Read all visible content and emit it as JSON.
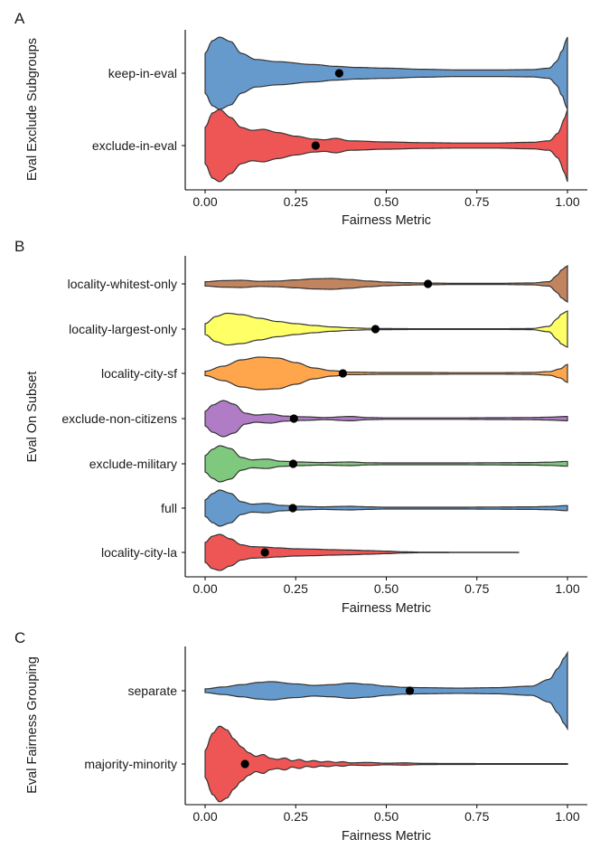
{
  "chart_data": [
    {
      "type": "violin",
      "panel": "A",
      "xlabel": "Fairness Metric",
      "ylabel": "Eval Exclude Subgroups",
      "xlim": [
        0,
        1
      ],
      "x_ticks": [
        "0.00",
        "0.25",
        "0.50",
        "0.75",
        "1.00"
      ],
      "categories": [
        "keep-in-eval",
        "exclude-in-eval"
      ],
      "series": [
        {
          "name": "keep-in-eval",
          "color": "#6699cc",
          "mean": 0.37,
          "min": 0.0,
          "max": 1.0,
          "density": [
            [
              0.0,
              0.55
            ],
            [
              0.02,
              0.9
            ],
            [
              0.04,
              1.0
            ],
            [
              0.07,
              0.88
            ],
            [
              0.1,
              0.55
            ],
            [
              0.14,
              0.38
            ],
            [
              0.2,
              0.32
            ],
            [
              0.3,
              0.24
            ],
            [
              0.36,
              0.19
            ],
            [
              0.42,
              0.16
            ],
            [
              0.5,
              0.14
            ],
            [
              0.6,
              0.11
            ],
            [
              0.7,
              0.09
            ],
            [
              0.8,
              0.09
            ],
            [
              0.9,
              0.1
            ],
            [
              0.95,
              0.14
            ],
            [
              0.97,
              0.32
            ],
            [
              0.985,
              0.62
            ],
            [
              1.0,
              1.0
            ]
          ]
        },
        {
          "name": "exclude-in-eval",
          "color": "#ee5555",
          "mean": 0.305,
          "min": 0.0,
          "max": 1.0,
          "density": [
            [
              0.0,
              0.5
            ],
            [
              0.02,
              0.9
            ],
            [
              0.04,
              1.0
            ],
            [
              0.07,
              0.78
            ],
            [
              0.1,
              0.5
            ],
            [
              0.13,
              0.42
            ],
            [
              0.16,
              0.45
            ],
            [
              0.2,
              0.36
            ],
            [
              0.25,
              0.26
            ],
            [
              0.3,
              0.18
            ],
            [
              0.33,
              0.16
            ],
            [
              0.36,
              0.2
            ],
            [
              0.4,
              0.13
            ],
            [
              0.5,
              0.1
            ],
            [
              0.6,
              0.08
            ],
            [
              0.7,
              0.07
            ],
            [
              0.8,
              0.07
            ],
            [
              0.9,
              0.09
            ],
            [
              0.95,
              0.13
            ],
            [
              0.975,
              0.35
            ],
            [
              0.99,
              0.7
            ],
            [
              1.0,
              1.0
            ]
          ]
        }
      ]
    },
    {
      "type": "violin",
      "panel": "B",
      "xlabel": "Fairness Metric",
      "ylabel": "Eval On Subset",
      "xlim": [
        0,
        1
      ],
      "x_ticks": [
        "0.00",
        "0.25",
        "0.50",
        "0.75",
        "1.00"
      ],
      "categories": [
        "locality-whitest-only",
        "locality-largest-only",
        "locality-city-sf",
        "exclude-non-citizens",
        "exclude-military",
        "full",
        "locality-city-la"
      ],
      "series": [
        {
          "name": "locality-whitest-only",
          "color": "#c0845f",
          "mean": 0.615,
          "min": 0.0,
          "max": 1.0,
          "density": [
            [
              0.0,
              0.12
            ],
            [
              0.05,
              0.18
            ],
            [
              0.1,
              0.2
            ],
            [
              0.15,
              0.14
            ],
            [
              0.2,
              0.16
            ],
            [
              0.25,
              0.22
            ],
            [
              0.3,
              0.28
            ],
            [
              0.35,
              0.3
            ],
            [
              0.4,
              0.24
            ],
            [
              0.45,
              0.16
            ],
            [
              0.5,
              0.1
            ],
            [
              0.55,
              0.07
            ],
            [
              0.6,
              0.05
            ],
            [
              0.7,
              0.03
            ],
            [
              0.8,
              0.03
            ],
            [
              0.9,
              0.05
            ],
            [
              0.95,
              0.12
            ],
            [
              0.97,
              0.45
            ],
            [
              0.985,
              0.8
            ],
            [
              1.0,
              1.0
            ]
          ]
        },
        {
          "name": "locality-largest-only",
          "color": "#ffff66",
          "mean": 0.47,
          "min": 0.0,
          "max": 1.0,
          "density": [
            [
              0.0,
              0.3
            ],
            [
              0.03,
              0.7
            ],
            [
              0.06,
              0.88
            ],
            [
              0.1,
              0.8
            ],
            [
              0.15,
              0.6
            ],
            [
              0.2,
              0.42
            ],
            [
              0.25,
              0.3
            ],
            [
              0.3,
              0.2
            ],
            [
              0.35,
              0.12
            ],
            [
              0.4,
              0.07
            ],
            [
              0.45,
              0.04
            ],
            [
              0.5,
              0.03
            ],
            [
              0.6,
              0.02
            ],
            [
              0.7,
              0.02
            ],
            [
              0.8,
              0.02
            ],
            [
              0.9,
              0.03
            ],
            [
              0.95,
              0.15
            ],
            [
              0.97,
              0.55
            ],
            [
              0.985,
              0.85
            ],
            [
              1.0,
              1.0
            ]
          ]
        },
        {
          "name": "locality-city-sf",
          "color": "#ffa64d",
          "mean": 0.38,
          "min": 0.0,
          "max": 1.0,
          "density": [
            [
              0.0,
              0.12
            ],
            [
              0.05,
              0.4
            ],
            [
              0.1,
              0.75
            ],
            [
              0.15,
              0.9
            ],
            [
              0.2,
              0.85
            ],
            [
              0.25,
              0.6
            ],
            [
              0.3,
              0.3
            ],
            [
              0.35,
              0.15
            ],
            [
              0.4,
              0.07
            ],
            [
              0.5,
              0.05
            ],
            [
              0.6,
              0.05
            ],
            [
              0.7,
              0.04
            ],
            [
              0.8,
              0.04
            ],
            [
              0.9,
              0.05
            ],
            [
              0.95,
              0.1
            ],
            [
              0.98,
              0.25
            ],
            [
              1.0,
              0.5
            ]
          ]
        },
        {
          "name": "exclude-non-citizens",
          "color": "#b07cc6",
          "mean": 0.245,
          "min": 0.0,
          "max": 1.0,
          "density": [
            [
              0.0,
              0.4
            ],
            [
              0.02,
              0.75
            ],
            [
              0.05,
              1.0
            ],
            [
              0.08,
              0.8
            ],
            [
              0.11,
              0.3
            ],
            [
              0.14,
              0.2
            ],
            [
              0.18,
              0.25
            ],
            [
              0.22,
              0.14
            ],
            [
              0.27,
              0.1
            ],
            [
              0.33,
              0.06
            ],
            [
              0.4,
              0.12
            ],
            [
              0.45,
              0.06
            ],
            [
              0.5,
              0.04
            ],
            [
              0.6,
              0.04
            ],
            [
              0.7,
              0.04
            ],
            [
              0.8,
              0.05
            ],
            [
              0.9,
              0.06
            ],
            [
              0.95,
              0.08
            ],
            [
              1.0,
              0.12
            ]
          ]
        },
        {
          "name": "exclude-military",
          "color": "#7fc97f",
          "mean": 0.243,
          "min": 0.0,
          "max": 1.0,
          "density": [
            [
              0.0,
              0.45
            ],
            [
              0.02,
              0.8
            ],
            [
              0.04,
              1.0
            ],
            [
              0.07,
              0.85
            ],
            [
              0.1,
              0.35
            ],
            [
              0.13,
              0.22
            ],
            [
              0.17,
              0.26
            ],
            [
              0.21,
              0.14
            ],
            [
              0.26,
              0.1
            ],
            [
              0.32,
              0.07
            ],
            [
              0.4,
              0.1
            ],
            [
              0.45,
              0.06
            ],
            [
              0.5,
              0.05
            ],
            [
              0.6,
              0.05
            ],
            [
              0.7,
              0.05
            ],
            [
              0.8,
              0.06
            ],
            [
              0.9,
              0.07
            ],
            [
              0.95,
              0.09
            ],
            [
              1.0,
              0.13
            ]
          ]
        },
        {
          "name": "full",
          "color": "#6699cc",
          "mean": 0.242,
          "min": 0.0,
          "max": 1.0,
          "density": [
            [
              0.0,
              0.45
            ],
            [
              0.02,
              0.8
            ],
            [
              0.04,
              1.0
            ],
            [
              0.07,
              0.82
            ],
            [
              0.1,
              0.35
            ],
            [
              0.13,
              0.22
            ],
            [
              0.17,
              0.26
            ],
            [
              0.21,
              0.15
            ],
            [
              0.26,
              0.1
            ],
            [
              0.32,
              0.07
            ],
            [
              0.4,
              0.1
            ],
            [
              0.45,
              0.07
            ],
            [
              0.5,
              0.05
            ],
            [
              0.6,
              0.05
            ],
            [
              0.7,
              0.05
            ],
            [
              0.8,
              0.06
            ],
            [
              0.9,
              0.07
            ],
            [
              0.95,
              0.09
            ],
            [
              1.0,
              0.14
            ]
          ]
        },
        {
          "name": "locality-city-la",
          "color": "#ee5555",
          "mean": 0.165,
          "min": 0.0,
          "max": 0.865,
          "density": [
            [
              0.0,
              0.55
            ],
            [
              0.02,
              0.9
            ],
            [
              0.04,
              1.0
            ],
            [
              0.07,
              0.75
            ],
            [
              0.1,
              0.42
            ],
            [
              0.13,
              0.32
            ],
            [
              0.16,
              0.3
            ],
            [
              0.2,
              0.25
            ],
            [
              0.25,
              0.2
            ],
            [
              0.3,
              0.18
            ],
            [
              0.35,
              0.15
            ],
            [
              0.4,
              0.13
            ],
            [
              0.45,
              0.1
            ],
            [
              0.5,
              0.07
            ],
            [
              0.55,
              0.03
            ],
            [
              0.6,
              0.015
            ],
            [
              0.7,
              0.01
            ],
            [
              0.8,
              0.008
            ],
            [
              0.865,
              0.005
            ]
          ]
        }
      ]
    },
    {
      "type": "violin",
      "panel": "C",
      "xlabel": "Fairness Metric",
      "ylabel": "Eval Fairness Grouping",
      "xlim": [
        0,
        1
      ],
      "x_ticks": [
        "0.00",
        "0.25",
        "0.50",
        "0.75",
        "1.00"
      ],
      "categories": [
        "separate",
        "majority-minority"
      ],
      "series": [
        {
          "name": "separate",
          "color": "#6699cc",
          "mean": 0.565,
          "min": 0.0,
          "max": 1.0,
          "density": [
            [
              0.0,
              0.05
            ],
            [
              0.05,
              0.1
            ],
            [
              0.1,
              0.16
            ],
            [
              0.15,
              0.22
            ],
            [
              0.18,
              0.24
            ],
            [
              0.25,
              0.18
            ],
            [
              0.3,
              0.14
            ],
            [
              0.35,
              0.16
            ],
            [
              0.4,
              0.2
            ],
            [
              0.45,
              0.17
            ],
            [
              0.5,
              0.12
            ],
            [
              0.55,
              0.09
            ],
            [
              0.6,
              0.08
            ],
            [
              0.7,
              0.07
            ],
            [
              0.8,
              0.08
            ],
            [
              0.9,
              0.12
            ],
            [
              0.95,
              0.3
            ],
            [
              0.975,
              0.6
            ],
            [
              0.99,
              0.85
            ],
            [
              1.0,
              1.0
            ]
          ]
        },
        {
          "name": "majority-minority",
          "color": "#ee5555",
          "mean": 0.11,
          "min": 0.0,
          "max": 1.0,
          "density": [
            [
              0.0,
              0.35
            ],
            [
              0.02,
              0.8
            ],
            [
              0.04,
              1.0
            ],
            [
              0.06,
              0.9
            ],
            [
              0.08,
              0.65
            ],
            [
              0.1,
              0.45
            ],
            [
              0.12,
              0.3
            ],
            [
              0.14,
              0.2
            ],
            [
              0.16,
              0.25
            ],
            [
              0.18,
              0.15
            ],
            [
              0.2,
              0.12
            ],
            [
              0.22,
              0.16
            ],
            [
              0.24,
              0.08
            ],
            [
              0.26,
              0.12
            ],
            [
              0.28,
              0.06
            ],
            [
              0.3,
              0.09
            ],
            [
              0.32,
              0.05
            ],
            [
              0.34,
              0.07
            ],
            [
              0.36,
              0.04
            ],
            [
              0.38,
              0.06
            ],
            [
              0.4,
              0.03
            ],
            [
              0.45,
              0.04
            ],
            [
              0.5,
              0.02
            ],
            [
              0.55,
              0.03
            ],
            [
              0.6,
              0.015
            ],
            [
              0.7,
              0.012
            ],
            [
              0.8,
              0.01
            ],
            [
              0.9,
              0.008
            ],
            [
              1.0,
              0.008
            ]
          ]
        }
      ]
    }
  ]
}
